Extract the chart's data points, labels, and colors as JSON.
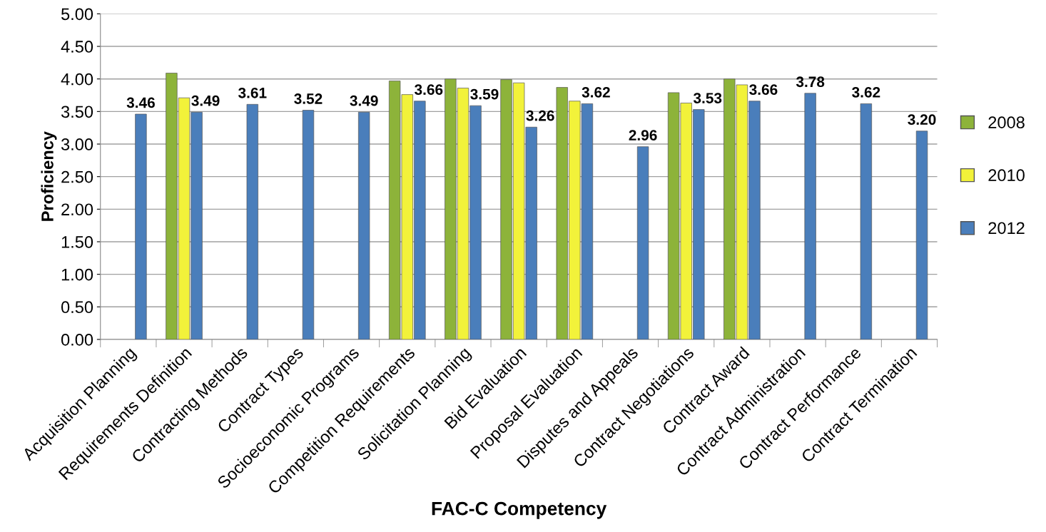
{
  "chart_data": {
    "type": "bar",
    "xlabel": "FAC-C Competency",
    "ylabel": "Proficiency",
    "categories": [
      "Acquisition Planning",
      "Requirements Definition",
      "Contracting Methods",
      "Contract Types",
      "Socioeconomic Programs",
      "Competition Requirements",
      "Solicitation Planning",
      "Bid Evaluation",
      "Proposal Evaluation",
      "Disputes and Appeals",
      "Contract Negotiations",
      "Contract Award",
      "Contract Administration",
      "Contract Performance",
      "Contract Termination"
    ],
    "series": [
      {
        "name": "2008",
        "color": "#8db33a",
        "values": [
          null,
          4.09,
          null,
          null,
          null,
          3.97,
          4.0,
          3.99,
          3.87,
          null,
          3.79,
          4.0,
          null,
          null,
          null
        ]
      },
      {
        "name": "2010",
        "color": "#f2f23a",
        "values": [
          null,
          3.71,
          null,
          null,
          null,
          3.76,
          3.86,
          3.94,
          3.66,
          null,
          3.63,
          3.91,
          null,
          null,
          null
        ]
      },
      {
        "name": "2012",
        "color": "#4a7ebb",
        "values": [
          3.46,
          3.49,
          3.61,
          3.52,
          3.49,
          3.66,
          3.59,
          3.26,
          3.62,
          2.96,
          3.53,
          3.66,
          3.78,
          3.62,
          3.2
        ],
        "value_labels": [
          "3.46",
          "3.49",
          "3.61",
          "3.52",
          "3.49",
          "3.66",
          "3.59",
          "3.26",
          "3.62",
          "2.96",
          "3.53",
          "3.66",
          "3.78",
          "3.62",
          "3.20"
        ]
      }
    ],
    "ylim": [
      0,
      5
    ],
    "yticks": [
      {
        "value": 0,
        "label": "0.00"
      },
      {
        "value": 0.5,
        "label": "0.50"
      },
      {
        "value": 1,
        "label": "1.00"
      },
      {
        "value": 1.5,
        "label": "1.50"
      },
      {
        "value": 2,
        "label": "2.00"
      },
      {
        "value": 2.5,
        "label": "2.50"
      },
      {
        "value": 3,
        "label": "3.00"
      },
      {
        "value": 3.5,
        "label": "3.50"
      },
      {
        "value": 4,
        "label": "4.00"
      },
      {
        "value": 4.5,
        "label": "4.50"
      },
      {
        "value": 5,
        "label": "5.00"
      }
    ],
    "grid": "y",
    "legend": "right"
  }
}
